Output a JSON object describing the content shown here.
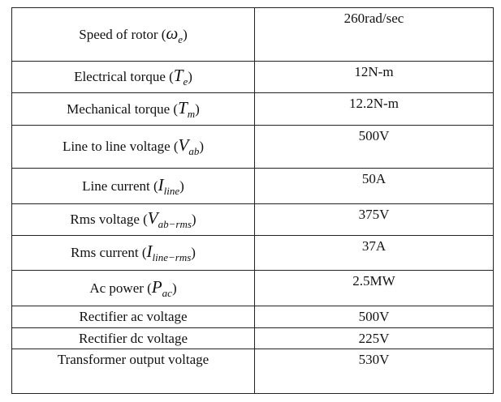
{
  "rows": [
    {
      "name": "Speed of rotor",
      "symbol": "ω",
      "sub": "e",
      "value": "260rad/sec"
    },
    {
      "name": "Electrical torque",
      "symbol": "T",
      "sub": "e",
      "value": "12N-m"
    },
    {
      "name": "Mechanical torque",
      "symbol": "T",
      "sub": "m",
      "value": "12.2N-m"
    },
    {
      "name": "Line to line voltage",
      "symbol": "V",
      "sub": "ab",
      "value": "500V"
    },
    {
      "name": "Line current",
      "symbol": "I",
      "sub": "line",
      "value": "50A"
    },
    {
      "name": "Rms voltage",
      "symbol": "V",
      "sub": "ab−rms",
      "value": "375V"
    },
    {
      "name": "Rms current",
      "symbol": "I",
      "sub": "line−rms",
      "value": "37A"
    },
    {
      "name": "Ac power",
      "symbol": "P",
      "sub": "ac",
      "value": "2.5MW"
    },
    {
      "name": "Rectifier ac voltage",
      "symbol": "",
      "sub": "",
      "value": "500V"
    },
    {
      "name": "Rectifier dc voltage",
      "symbol": "",
      "sub": "",
      "value": "225V"
    },
    {
      "name": "Transformer output voltage",
      "symbol": "",
      "sub": "",
      "value": "530V"
    }
  ]
}
